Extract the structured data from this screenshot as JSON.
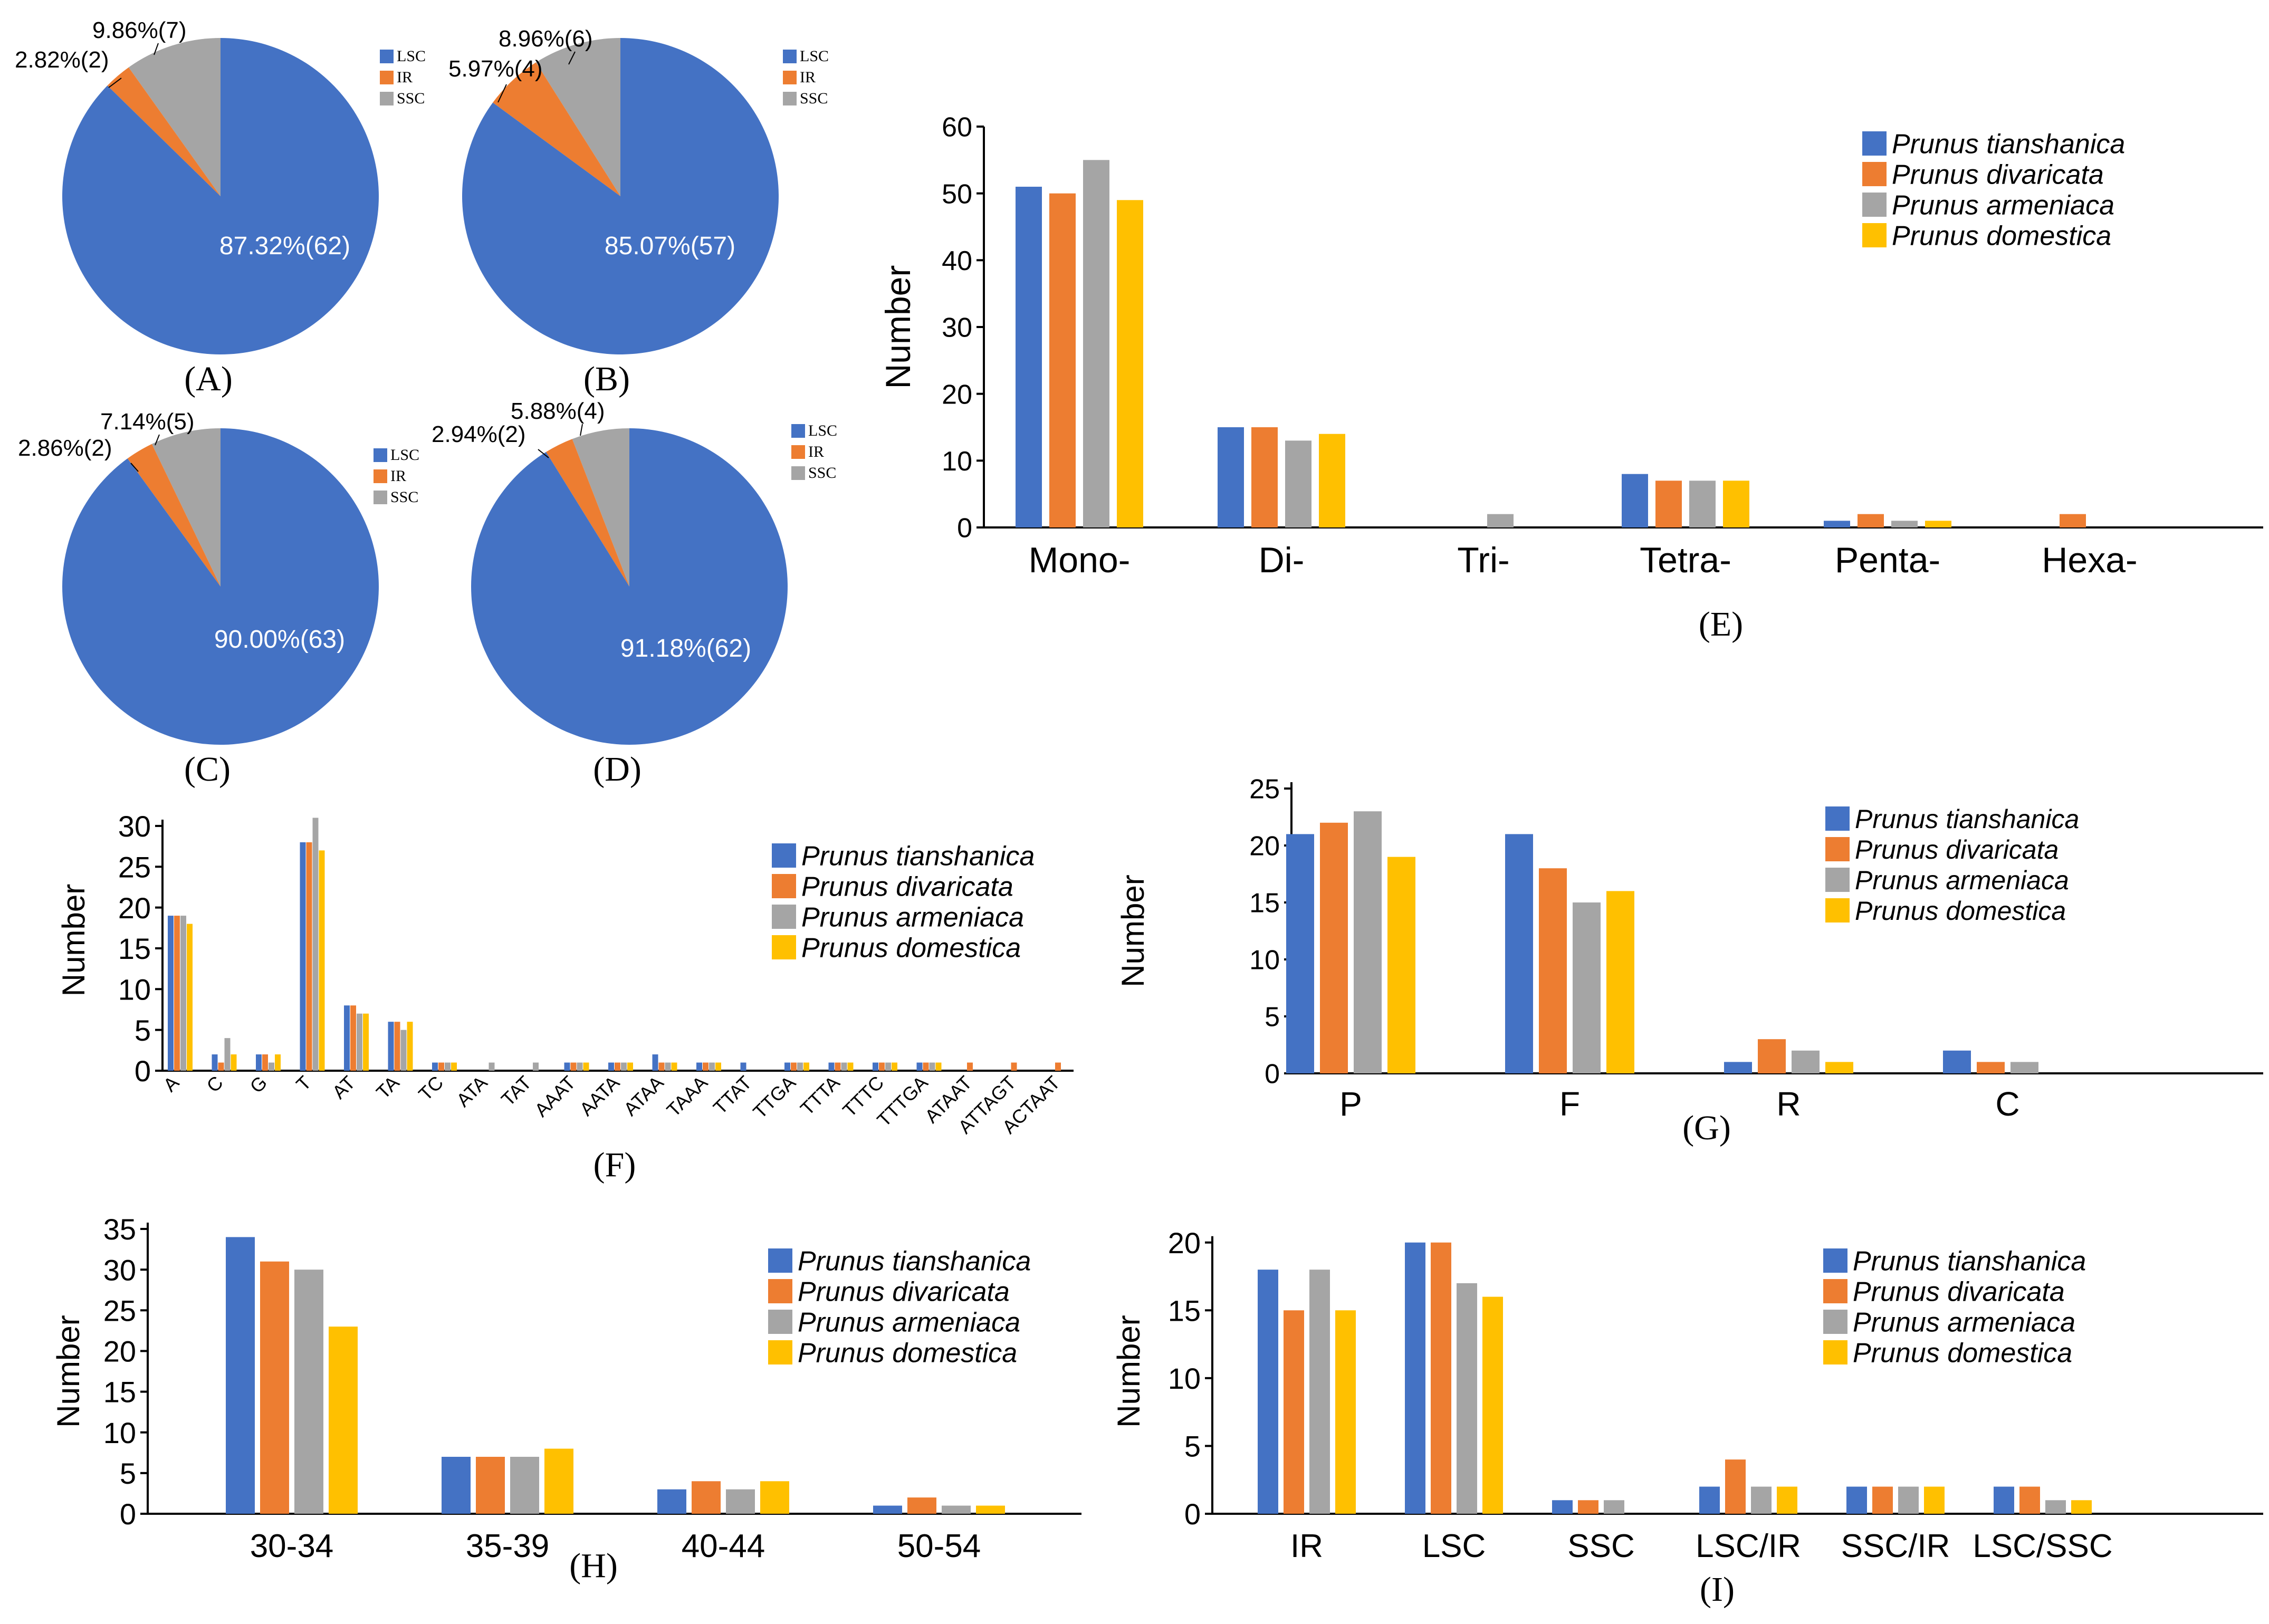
{
  "colors": {
    "blue": "#4472C4",
    "orange": "#ED7D31",
    "gray": "#A5A5A5",
    "yellow": "#FFC000",
    "axis": "#000000",
    "pieLabelWhite": "#ffffff"
  },
  "species_legend": [
    "Prunus tianshanica",
    "Prunus divaricata",
    "Prunus armeniaca",
    "Prunus domestica"
  ],
  "region_legend": [
    "LSC",
    "IR",
    "SSC"
  ],
  "chart_data": [
    {
      "id": "A",
      "type": "pie",
      "title": "(A)",
      "legend": [
        "LSC",
        "IR",
        "SSC"
      ],
      "slices": [
        {
          "name": "LSC",
          "value": 62,
          "label": "87.32%(62)"
        },
        {
          "name": "IR",
          "value": 2,
          "label": "2.82%(2)"
        },
        {
          "name": "SSC",
          "value": 7,
          "label": "9.86%(7)"
        }
      ]
    },
    {
      "id": "B",
      "type": "pie",
      "title": "(B)",
      "legend": [
        "LSC",
        "IR",
        "SSC"
      ],
      "slices": [
        {
          "name": "LSC",
          "value": 57,
          "label": "85.07%(57)"
        },
        {
          "name": "IR",
          "value": 4,
          "label": "5.97%(4)"
        },
        {
          "name": "SSC",
          "value": 6,
          "label": "8.96%(6)"
        }
      ]
    },
    {
      "id": "C",
      "type": "pie",
      "title": "(C)",
      "legend": [
        "LSC",
        "IR",
        "SSC"
      ],
      "slices": [
        {
          "name": "LSC",
          "value": 63,
          "label": "90.00%(63)"
        },
        {
          "name": "IR",
          "value": 2,
          "label": "2.86%(2)"
        },
        {
          "name": "SSC",
          "value": 5,
          "label": "7.14%(5)"
        }
      ]
    },
    {
      "id": "D",
      "type": "pie",
      "title": "(D)",
      "legend": [
        "LSC",
        "IR",
        "SSC"
      ],
      "slices": [
        {
          "name": "LSC",
          "value": 62,
          "label": "91.18%(62)"
        },
        {
          "name": "IR",
          "value": 2,
          "label": "2.94%(2)"
        },
        {
          "name": "SSC",
          "value": 4,
          "label": "5.88%(4)"
        }
      ]
    },
    {
      "id": "E",
      "type": "bar",
      "title": "(E)",
      "xlabel": "",
      "ylabel": "Number",
      "ylim": [
        0,
        60
      ],
      "yticks": [
        0,
        10,
        20,
        30,
        40,
        50,
        60
      ],
      "categories": [
        "Mono-",
        "Di-",
        "Tri-",
        "Tetra-",
        "Penta-",
        "Hexa-"
      ],
      "series": [
        {
          "name": "Prunus tianshanica",
          "values": [
            51,
            15,
            0,
            8,
            1,
            0
          ]
        },
        {
          "name": "Prunus divaricata",
          "values": [
            50,
            15,
            0,
            7,
            2,
            2
          ]
        },
        {
          "name": "Prunus armeniaca",
          "values": [
            55,
            13,
            2,
            7,
            1,
            0
          ]
        },
        {
          "name": "Prunus domestica",
          "values": [
            49,
            14,
            0,
            7,
            1,
            0
          ]
        }
      ]
    },
    {
      "id": "F",
      "type": "bar",
      "title": "(F)",
      "xlabel": "",
      "ylabel": "Number",
      "ylim": [
        0,
        32
      ],
      "yticks": [
        0,
        5,
        10,
        15,
        20,
        25,
        30
      ],
      "categories": [
        "A",
        "C",
        "G",
        "T",
        "AT",
        "TA",
        "TC",
        "ATA",
        "TAT",
        "AAAT",
        "AATA",
        "ATAA",
        "TAAA",
        "TTAT",
        "TTGA",
        "TTTA",
        "TTTC",
        "TTTGA",
        "ATAAT",
        "ATTAGT",
        "ACTAAT"
      ],
      "series": [
        {
          "name": "Prunus tianshanica",
          "values": [
            19,
            2,
            2,
            28,
            8,
            6,
            1,
            0,
            0,
            1,
            1,
            2,
            1,
            1,
            1,
            1,
            1,
            1,
            0,
            0,
            0
          ]
        },
        {
          "name": "Prunus divaricata",
          "values": [
            19,
            1,
            2,
            28,
            8,
            6,
            1,
            0,
            0,
            1,
            1,
            1,
            1,
            0,
            1,
            1,
            1,
            1,
            1,
            1,
            1
          ]
        },
        {
          "name": "Prunus armeniaca",
          "values": [
            19,
            4,
            1,
            31,
            7,
            5,
            1,
            1,
            1,
            1,
            1,
            1,
            1,
            0,
            1,
            1,
            1,
            1,
            0,
            0,
            0
          ]
        },
        {
          "name": "Prunus domestica",
          "values": [
            18,
            2,
            2,
            27,
            7,
            6,
            1,
            0,
            0,
            1,
            1,
            1,
            1,
            0,
            1,
            1,
            1,
            1,
            0,
            0,
            0
          ]
        }
      ]
    },
    {
      "id": "G",
      "type": "bar",
      "title": "(G)",
      "xlabel": "",
      "ylabel": "Number",
      "ylim": [
        0,
        25
      ],
      "yticks": [
        0,
        5,
        10,
        15,
        20,
        25
      ],
      "categories": [
        "P",
        "F",
        "R",
        "C"
      ],
      "series": [
        {
          "name": "Prunus tianshanica",
          "values": [
            21,
            21,
            1,
            2
          ]
        },
        {
          "name": "Prunus divaricata",
          "values": [
            22,
            18,
            3,
            1
          ]
        },
        {
          "name": "Prunus armeniaca",
          "values": [
            23,
            15,
            2,
            1
          ]
        },
        {
          "name": "Prunus domestica",
          "values": [
            19,
            16,
            1,
            0
          ]
        }
      ]
    },
    {
      "id": "H",
      "type": "bar",
      "title": "(H)",
      "xlabel": "",
      "ylabel": "Number",
      "ylim": [
        0,
        35
      ],
      "yticks": [
        0,
        5,
        10,
        15,
        20,
        25,
        30,
        35
      ],
      "categories": [
        "30-34",
        "35-39",
        "40-44",
        "50-54"
      ],
      "series": [
        {
          "name": "Prunus tianshanica",
          "values": [
            34,
            7,
            3,
            1
          ]
        },
        {
          "name": "Prunus divaricata",
          "values": [
            31,
            7,
            4,
            2
          ]
        },
        {
          "name": "Prunus armeniaca",
          "values": [
            30,
            7,
            3,
            1
          ]
        },
        {
          "name": "Prunus domestica",
          "values": [
            23,
            8,
            4,
            1
          ]
        }
      ]
    },
    {
      "id": "I",
      "type": "bar",
      "title": "(I)",
      "xlabel": "",
      "ylabel": "Number",
      "ylim": [
        0,
        21
      ],
      "yticks": [
        0,
        5,
        10,
        15,
        20
      ],
      "categories": [
        "IR",
        "LSC",
        "SSC",
        "LSC/IR",
        "SSC/IR",
        "LSC/SSC"
      ],
      "series": [
        {
          "name": "Prunus tianshanica",
          "values": [
            18,
            20,
            1,
            2,
            2,
            2
          ]
        },
        {
          "name": "Prunus divaricata",
          "values": [
            15,
            20,
            1,
            4,
            2,
            2
          ]
        },
        {
          "name": "Prunus armeniaca",
          "values": [
            18,
            17,
            1,
            2,
            2,
            1
          ]
        },
        {
          "name": "Prunus domestica",
          "values": [
            15,
            16,
            0,
            2,
            2,
            1
          ]
        }
      ]
    }
  ]
}
